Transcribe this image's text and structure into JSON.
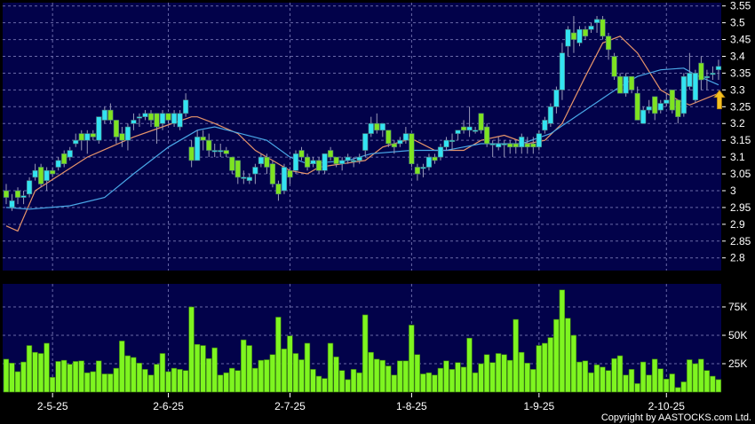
{
  "chart_data": [
    {
      "type": "candlestick",
      "title": "",
      "ylim": [
        2.76,
        3.56
      ],
      "yticks": [
        "2.8",
        "2.85",
        "2.9",
        "2.95",
        "3",
        "3.05",
        "3.1",
        "3.15",
        "3.2",
        "3.25",
        "3.3",
        "3.35",
        "3.4",
        "3.45",
        "3.5",
        "3.55"
      ],
      "grid": true,
      "colors": {
        "up": "#33e3f2",
        "down": "#7ee321",
        "background": "#02024a",
        "ma_short": "#e8956a",
        "ma_long": "#4aa8e8",
        "arrow": "#f5c020"
      },
      "candle_fields": [
        "open",
        "high",
        "low",
        "close"
      ],
      "candles": [
        [
          3.0,
          3.02,
          2.96,
          2.98
        ],
        [
          2.95,
          2.99,
          2.94,
          2.97
        ],
        [
          3.0,
          3.01,
          2.96,
          2.98
        ],
        [
          2.98,
          3.0,
          2.96,
          2.985
        ],
        [
          2.99,
          3.04,
          2.98,
          3.03
        ],
        [
          3.04,
          3.08,
          3.03,
          3.06
        ],
        [
          3.07,
          3.08,
          3.01,
          3.02
        ],
        [
          3.03,
          3.07,
          3.0,
          3.06
        ],
        [
          3.06,
          3.07,
          3.04,
          3.05
        ],
        [
          3.07,
          3.1,
          3.06,
          3.09
        ],
        [
          3.11,
          3.12,
          3.07,
          3.08
        ],
        [
          3.1,
          3.13,
          3.09,
          3.12
        ],
        [
          3.14,
          3.17,
          3.13,
          3.15
        ],
        [
          3.17,
          3.18,
          3.12,
          3.15
        ],
        [
          3.15,
          3.18,
          3.11,
          3.17
        ],
        [
          3.17,
          3.18,
          3.15,
          3.16
        ],
        [
          3.15,
          3.22,
          3.14,
          3.22
        ],
        [
          3.21,
          3.25,
          3.2,
          3.24
        ],
        [
          3.24,
          3.26,
          3.2,
          3.21
        ],
        [
          3.21,
          3.21,
          3.14,
          3.16
        ],
        [
          3.17,
          3.19,
          3.13,
          3.15
        ],
        [
          3.15,
          3.2,
          3.12,
          3.19
        ],
        [
          3.2,
          3.23,
          3.18,
          3.21
        ],
        [
          3.22,
          3.23,
          3.19,
          3.22
        ],
        [
          3.22,
          3.24,
          3.21,
          3.23
        ],
        [
          3.23,
          3.24,
          3.19,
          3.21
        ],
        [
          3.23,
          3.23,
          3.14,
          3.19
        ],
        [
          3.2,
          3.24,
          3.18,
          3.23
        ],
        [
          3.23,
          3.23,
          3.2,
          3.21
        ],
        [
          3.2,
          3.24,
          3.19,
          3.23
        ],
        [
          3.19,
          3.24,
          3.18,
          3.23
        ],
        [
          3.23,
          3.29,
          3.22,
          3.27
        ],
        [
          3.13,
          3.15,
          3.07,
          3.09
        ],
        [
          3.09,
          3.18,
          3.09,
          3.16
        ],
        [
          3.16,
          3.18,
          3.12,
          3.15
        ],
        [
          3.15,
          3.17,
          3.1,
          3.12
        ],
        [
          3.12,
          3.14,
          3.1,
          3.12
        ],
        [
          3.12,
          3.14,
          3.1,
          3.12
        ],
        [
          3.12,
          3.13,
          3.1,
          3.11
        ],
        [
          3.1,
          3.1,
          3.05,
          3.06
        ],
        [
          3.09,
          3.09,
          3.02,
          3.04
        ],
        [
          3.04,
          3.06,
          3.02,
          3.04
        ],
        [
          3.03,
          3.05,
          3.02,
          3.04
        ],
        [
          3.05,
          3.08,
          3.02,
          3.07
        ],
        [
          3.08,
          3.11,
          3.07,
          3.1
        ],
        [
          3.1,
          3.11,
          3.05,
          3.07
        ],
        [
          3.08,
          3.09,
          3.01,
          3.02
        ],
        [
          3.02,
          3.03,
          2.97,
          2.99
        ],
        [
          3.0,
          3.08,
          2.99,
          3.07
        ],
        [
          3.06,
          3.07,
          3.02,
          3.04
        ],
        [
          3.06,
          3.12,
          3.05,
          3.11
        ],
        [
          3.12,
          3.13,
          3.09,
          3.1
        ],
        [
          3.1,
          3.11,
          3.06,
          3.07
        ],
        [
          3.08,
          3.1,
          3.07,
          3.09
        ],
        [
          3.09,
          3.1,
          3.05,
          3.06
        ],
        [
          3.06,
          3.11,
          3.05,
          3.11
        ],
        [
          3.12,
          3.13,
          3.09,
          3.1
        ],
        [
          3.1,
          3.1,
          3.07,
          3.08
        ],
        [
          3.08,
          3.1,
          3.06,
          3.09
        ],
        [
          3.09,
          3.11,
          3.08,
          3.1
        ],
        [
          3.09,
          3.1,
          3.07,
          3.09
        ],
        [
          3.09,
          3.11,
          3.08,
          3.1
        ],
        [
          3.12,
          3.17,
          3.1,
          3.17
        ],
        [
          3.17,
          3.22,
          3.16,
          3.2
        ],
        [
          3.2,
          3.23,
          3.17,
          3.18
        ],
        [
          3.18,
          3.2,
          3.16,
          3.2
        ],
        [
          3.18,
          3.18,
          3.13,
          3.14
        ],
        [
          3.14,
          3.15,
          3.11,
          3.13
        ],
        [
          3.14,
          3.16,
          3.13,
          3.15
        ],
        [
          3.15,
          3.19,
          3.14,
          3.17
        ],
        [
          3.17,
          3.17,
          3.07,
          3.08
        ],
        [
          3.07,
          3.08,
          3.03,
          3.05
        ],
        [
          3.07,
          3.08,
          3.04,
          3.07
        ],
        [
          3.07,
          3.11,
          3.06,
          3.1
        ],
        [
          3.1,
          3.11,
          3.08,
          3.09
        ],
        [
          3.1,
          3.14,
          3.09,
          3.13
        ],
        [
          3.13,
          3.16,
          3.12,
          3.15
        ],
        [
          3.15,
          3.17,
          3.12,
          3.15
        ],
        [
          3.17,
          3.18,
          3.15,
          3.18
        ],
        [
          3.19,
          3.21,
          3.17,
          3.18
        ],
        [
          3.18,
          3.25,
          3.16,
          3.19
        ],
        [
          3.18,
          3.19,
          3.17,
          3.18
        ],
        [
          3.23,
          3.23,
          3.17,
          3.18
        ],
        [
          3.19,
          3.2,
          3.13,
          3.14
        ],
        [
          3.14,
          3.15,
          3.1,
          3.14
        ],
        [
          3.13,
          3.16,
          3.12,
          3.14
        ],
        [
          3.14,
          3.15,
          3.1,
          3.14
        ],
        [
          3.14,
          3.15,
          3.11,
          3.13
        ],
        [
          3.14,
          3.15,
          3.11,
          3.13
        ],
        [
          3.13,
          3.17,
          3.11,
          3.16
        ],
        [
          3.14,
          3.16,
          3.11,
          3.13
        ],
        [
          3.14,
          3.16,
          3.11,
          3.13
        ],
        [
          3.13,
          3.18,
          3.12,
          3.17
        ],
        [
          3.18,
          3.22,
          3.17,
          3.21
        ],
        [
          3.2,
          3.26,
          3.19,
          3.25
        ],
        [
          3.25,
          3.31,
          3.23,
          3.3
        ],
        [
          3.3,
          3.44,
          3.27,
          3.41
        ],
        [
          3.43,
          3.49,
          3.4,
          3.48
        ],
        [
          3.47,
          3.52,
          3.41,
          3.45
        ],
        [
          3.44,
          3.49,
          3.43,
          3.48
        ],
        [
          3.48,
          3.49,
          3.45,
          3.46
        ],
        [
          3.48,
          3.5,
          3.47,
          3.49
        ],
        [
          3.5,
          3.52,
          3.47,
          3.51
        ],
        [
          3.51,
          3.52,
          3.45,
          3.46
        ],
        [
          3.46,
          3.47,
          3.39,
          3.42
        ],
        [
          3.4,
          3.41,
          3.33,
          3.34
        ],
        [
          3.34,
          3.35,
          3.29,
          3.29
        ],
        [
          3.29,
          3.35,
          3.28,
          3.34
        ],
        [
          3.34,
          3.34,
          3.29,
          3.3
        ],
        [
          3.29,
          3.31,
          3.21,
          3.21
        ],
        [
          3.2,
          3.25,
          3.2,
          3.24
        ],
        [
          3.24,
          3.27,
          3.23,
          3.25
        ],
        [
          3.28,
          3.28,
          3.21,
          3.23
        ],
        [
          3.24,
          3.27,
          3.23,
          3.26
        ],
        [
          3.26,
          3.29,
          3.25,
          3.27
        ],
        [
          3.3,
          3.3,
          3.23,
          3.24
        ],
        [
          3.27,
          3.27,
          3.2,
          3.22
        ],
        [
          3.23,
          3.35,
          3.22,
          3.34
        ],
        [
          3.31,
          3.41,
          3.3,
          3.35
        ],
        [
          3.27,
          3.36,
          3.26,
          3.35
        ],
        [
          3.38,
          3.4,
          3.3,
          3.33
        ],
        [
          3.34,
          3.36,
          3.3,
          3.34
        ],
        [
          3.35,
          3.37,
          3.33,
          3.35
        ],
        [
          3.36,
          3.39,
          3.33,
          3.37
        ]
      ],
      "moving_averages": [
        {
          "points": [
            [
              0,
              2.895
            ],
            [
              2,
              2.88
            ],
            [
              5,
              3.0
            ],
            [
              14,
              3.1
            ],
            [
              22,
              3.16
            ],
            [
              27,
              3.19
            ],
            [
              32,
              3.22
            ],
            [
              33,
              3.22
            ],
            [
              36,
              3.2
            ],
            [
              40,
              3.17
            ],
            [
              43,
              3.12
            ],
            [
              45,
              3.1
            ],
            [
              49,
              3.06
            ],
            [
              52,
              3.05
            ],
            [
              54,
              3.07
            ],
            [
              58,
              3.08
            ],
            [
              62,
              3.09
            ],
            [
              65,
              3.13
            ],
            [
              70,
              3.155
            ],
            [
              74,
              3.12
            ],
            [
              79,
              3.12
            ],
            [
              82,
              3.15
            ],
            [
              86,
              3.165
            ],
            [
              90,
              3.14
            ],
            [
              93,
              3.15
            ],
            [
              96,
              3.2
            ],
            [
              100,
              3.34
            ],
            [
              103,
              3.44
            ],
            [
              106,
              3.46
            ],
            [
              109,
              3.41
            ],
            [
              113,
              3.3
            ],
            [
              116,
              3.27
            ],
            [
              118,
              3.255
            ],
            [
              123,
              3.29
            ]
          ]
        },
        {
          "points": [
            [
              0,
              2.95
            ],
            [
              4,
              2.945
            ],
            [
              11,
              2.955
            ],
            [
              17,
              2.98
            ],
            [
              22,
              3.05
            ],
            [
              28,
              3.13
            ],
            [
              33,
              3.18
            ],
            [
              36,
              3.19
            ],
            [
              45,
              3.15
            ],
            [
              49,
              3.1
            ],
            [
              52,
              3.08
            ],
            [
              59,
              3.09
            ],
            [
              63,
              3.11
            ],
            [
              70,
              3.12
            ],
            [
              76,
              3.12
            ],
            [
              82,
              3.14
            ],
            [
              89,
              3.14
            ],
            [
              94,
              3.17
            ],
            [
              100,
              3.24
            ],
            [
              106,
              3.31
            ],
            [
              109,
              3.34
            ],
            [
              113,
              3.36
            ],
            [
              117,
              3.365
            ],
            [
              119,
              3.345
            ],
            [
              123,
              3.315
            ]
          ]
        }
      ],
      "marker": {
        "type": "up-arrow",
        "index": 123,
        "price": 3.27
      }
    },
    {
      "type": "bar",
      "ylim": [
        0,
        94
      ],
      "yticks": [
        "25K",
        "50K",
        "75K"
      ],
      "ytick_values": [
        25,
        50,
        75
      ],
      "unit": "K",
      "values": [
        29,
        25.5,
        18,
        26.5,
        41,
        35,
        34,
        43,
        13,
        27,
        28,
        24.5,
        27,
        27.5,
        17,
        18,
        27.5,
        16,
        16,
        21,
        45,
        32,
        30.5,
        25.5,
        20,
        15,
        24.5,
        34,
        18,
        21,
        20,
        19,
        75,
        42,
        41,
        29.5,
        39,
        15,
        17,
        21,
        19,
        46,
        41,
        21,
        28,
        28.5,
        33,
        66,
        38,
        49.5,
        34,
        28.5,
        43,
        20,
        14,
        12,
        43,
        31,
        19,
        11,
        20,
        17,
        68,
        35,
        29,
        28,
        23,
        15,
        27.5,
        27.5,
        59,
        33,
        16,
        17,
        15,
        21,
        27.5,
        20,
        26,
        22,
        47.5,
        17,
        25,
        33,
        26,
        34,
        33,
        28,
        64,
        35,
        25.5,
        20,
        41,
        43,
        48,
        64,
        90,
        65,
        50,
        26.5,
        27.5,
        17,
        24,
        22,
        19,
        29.5,
        32,
        15,
        20,
        7.5,
        26.5,
        15,
        29,
        20.5,
        11.5,
        16,
        4,
        9,
        28.5,
        25,
        29,
        19,
        14,
        11
      ],
      "color": "#7ef520"
    }
  ],
  "x_axis": {
    "labels": [
      {
        "text": "2-5-25",
        "index": 8
      },
      {
        "text": "2-6-25",
        "index": 28
      },
      {
        "text": "2-7-25",
        "index": 49
      },
      {
        "text": "1-8-25",
        "index": 70
      },
      {
        "text": "1-9-25",
        "index": 92
      },
      {
        "text": "2-10-25",
        "index": 114
      }
    ]
  },
  "copyright": "Copyright by AASTOCKS.com Ltd."
}
